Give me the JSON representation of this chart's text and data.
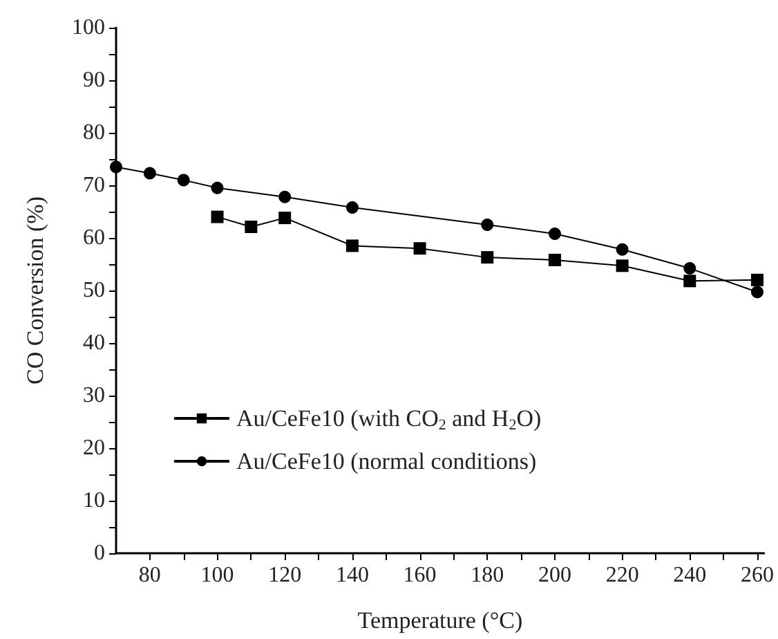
{
  "chart_data": {
    "type": "line",
    "xlabel": "Temperature (°C)",
    "ylabel": "CO Conversion (%)",
    "xlim": [
      70,
      262
    ],
    "xticks": [
      80,
      {
        "value": 90,
        "label": null
      },
      100,
      {
        "value": 110,
        "label": null
      },
      120,
      {
        "value": 130,
        "label": null
      },
      140,
      {
        "value": 150,
        "label": null
      },
      160,
      {
        "value": 170,
        "label": null
      },
      180,
      {
        "value": 190,
        "label": null
      },
      200,
      {
        "value": 210,
        "label": null
      },
      220,
      {
        "value": 230,
        "label": null
      },
      240,
      {
        "value": 250,
        "label": null
      },
      260
    ],
    "ylim": [
      0,
      100
    ],
    "yticks": [
      0,
      {
        "value": 5,
        "label": null
      },
      10,
      {
        "value": 15,
        "label": null
      },
      20,
      {
        "value": 25,
        "label": null
      },
      30,
      {
        "value": 35,
        "label": null
      },
      40,
      {
        "value": 45,
        "label": null
      },
      50,
      {
        "value": 55,
        "label": null
      },
      60,
      {
        "value": 65,
        "label": null
      },
      70,
      {
        "value": 75,
        "label": null
      },
      80,
      {
        "value": 85,
        "label": null
      },
      90,
      {
        "value": 95,
        "label": null
      },
      100
    ],
    "grid": false,
    "legend": "bottom left",
    "line_style": "solid",
    "series": [
      {
        "name": "Au/CeFe10 (with CO$_{2}$ and H$_{2}$O)",
        "color": "#000000",
        "marker": "square",
        "x": [
          100,
          110,
          120,
          140,
          160,
          180,
          200,
          220,
          240,
          260
        ],
        "values": [
          64,
          62.1,
          63.8,
          58.5,
          58,
          56.3,
          55.8,
          54.7,
          51.8,
          52
        ]
      },
      {
        "name": "Au/CeFe10 (normal conditions)",
        "color": "#000000",
        "marker": "circle",
        "x": [
          70,
          80,
          90,
          100,
          120,
          140,
          180,
          200,
          220,
          240,
          260
        ],
        "values": [
          73.5,
          72.3,
          71,
          69.5,
          67.8,
          65.8,
          62.5,
          60.8,
          57.8,
          54.2,
          49.7
        ]
      }
    ]
  }
}
